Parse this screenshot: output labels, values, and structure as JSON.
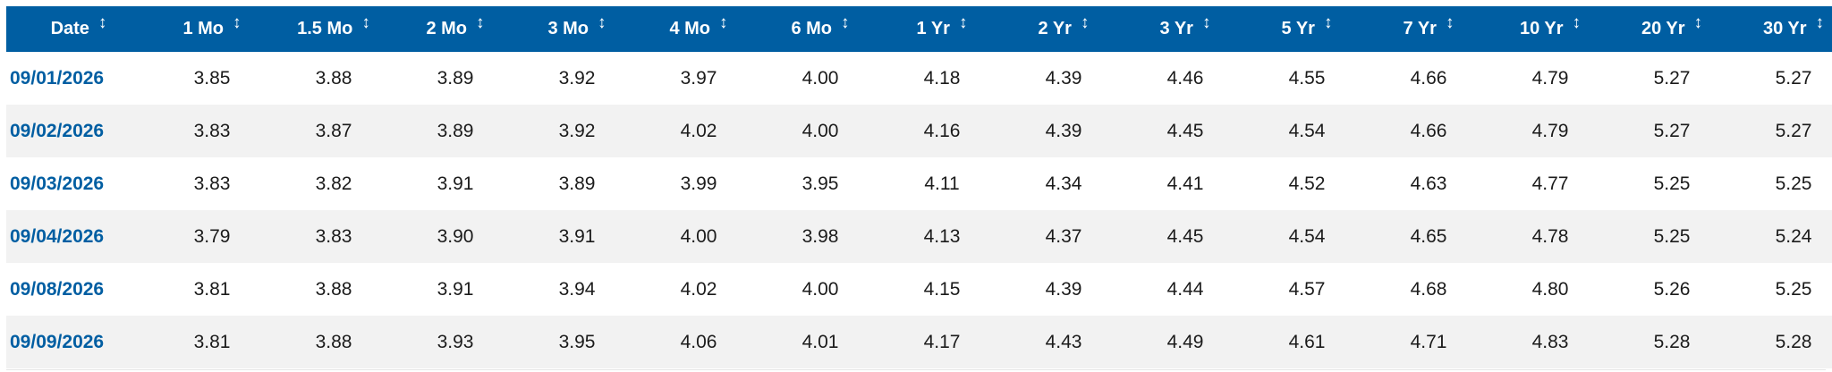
{
  "table": {
    "columns": [
      "Date",
      "1 Mo",
      "1.5 Mo",
      "2 Mo",
      "3 Mo",
      "4 Mo",
      "6 Mo",
      "1 Yr",
      "2 Yr",
      "3 Yr",
      "5 Yr",
      "7 Yr",
      "10 Yr",
      "20 Yr",
      "30 Yr"
    ],
    "sort_glyph": "↕",
    "rows": [
      {
        "date": "09/01/2026",
        "values": [
          "3.85",
          "3.88",
          "3.89",
          "3.92",
          "3.97",
          "4.00",
          "4.18",
          "4.39",
          "4.46",
          "4.55",
          "4.66",
          "4.79",
          "5.27",
          "5.27"
        ]
      },
      {
        "date": "09/02/2026",
        "values": [
          "3.83",
          "3.87",
          "3.89",
          "3.92",
          "4.02",
          "4.00",
          "4.16",
          "4.39",
          "4.45",
          "4.54",
          "4.66",
          "4.79",
          "5.27",
          "5.27"
        ]
      },
      {
        "date": "09/03/2026",
        "values": [
          "3.83",
          "3.82",
          "3.91",
          "3.89",
          "3.99",
          "3.95",
          "4.11",
          "4.34",
          "4.41",
          "4.52",
          "4.63",
          "4.77",
          "5.25",
          "5.25"
        ]
      },
      {
        "date": "09/04/2026",
        "values": [
          "3.79",
          "3.83",
          "3.90",
          "3.91",
          "4.00",
          "3.98",
          "4.13",
          "4.37",
          "4.45",
          "4.54",
          "4.65",
          "4.78",
          "5.25",
          "5.24"
        ]
      },
      {
        "date": "09/08/2026",
        "values": [
          "3.81",
          "3.88",
          "3.91",
          "3.94",
          "4.02",
          "4.00",
          "4.15",
          "4.39",
          "4.44",
          "4.57",
          "4.68",
          "4.80",
          "5.26",
          "5.25"
        ]
      },
      {
        "date": "09/09/2026",
        "values": [
          "3.81",
          "3.88",
          "3.93",
          "3.95",
          "4.06",
          "4.01",
          "4.17",
          "4.43",
          "4.49",
          "4.61",
          "4.71",
          "4.83",
          "5.28",
          "5.28"
        ]
      }
    ]
  },
  "colors": {
    "header_bg": "#005ea2",
    "header_text": "#ffffff",
    "date_link": "#005ea2",
    "alt_row_bg": "#f2f2f2"
  }
}
